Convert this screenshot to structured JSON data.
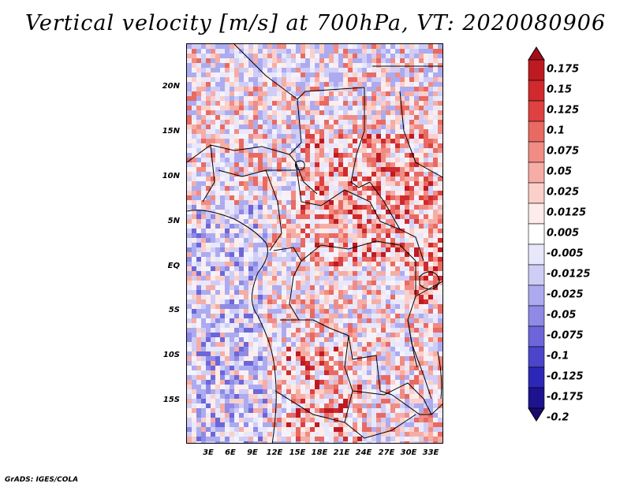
{
  "title": "Vertical velocity [m/s] at 700hPa, VT: 2020080906",
  "credit": "GrADS: IGES/COLA",
  "map": {
    "lat_labels": [
      "20N",
      "15N",
      "10N",
      "5N",
      "EQ",
      "5S",
      "10S",
      "15S"
    ],
    "lon_labels": [
      "3E",
      "6E",
      "9E",
      "12E",
      "15E",
      "18E",
      "21E",
      "24E",
      "27E",
      "30E",
      "33E"
    ],
    "lat_range": [
      -20,
      24.5
    ],
    "lon_range": [
      0,
      34.5
    ]
  },
  "colorbar": {
    "labels": [
      "0.175",
      "0.15",
      "0.125",
      "0.1",
      "0.075",
      "0.05",
      "0.025",
      "0.0125",
      "0.005",
      "-0.005",
      "-0.0125",
      "-0.025",
      "-0.05",
      "-0.075",
      "-0.1",
      "-0.125",
      "-0.175",
      "-0.2"
    ],
    "colors": [
      "#a50d1a",
      "#be1a22",
      "#d02a2c",
      "#dd4140",
      "#e86a62",
      "#f08c84",
      "#f6ada6",
      "#fbcfca",
      "#fdece9",
      "#ffffff",
      "#e9e8fb",
      "#cfcdf6",
      "#adabef",
      "#8e8ae6",
      "#6c66da",
      "#4b45cb",
      "#2d27b8",
      "#1d138e",
      "#170b70"
    ]
  }
}
